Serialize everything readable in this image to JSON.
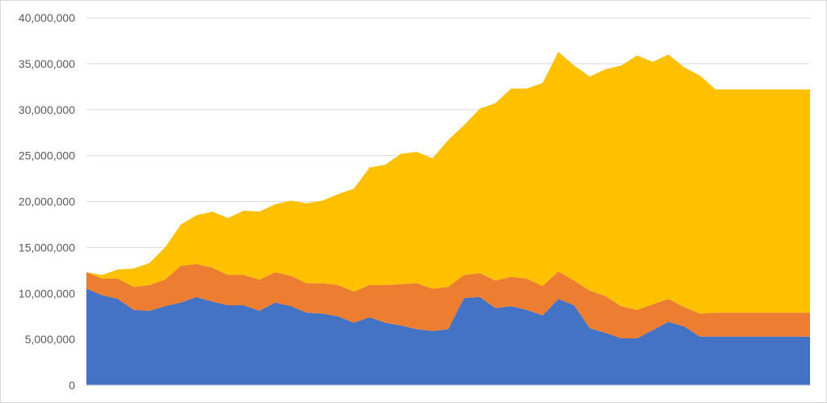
{
  "chart_data": {
    "type": "area",
    "stacked": true,
    "title": "",
    "xlabel": "",
    "ylabel": "",
    "ylim": [
      0,
      40000000
    ],
    "y_ticks": [
      0,
      5000000,
      10000000,
      15000000,
      20000000,
      25000000,
      30000000,
      35000000,
      40000000
    ],
    "y_tick_labels": [
      "0",
      "5,000,000",
      "10,000,000",
      "15,000,000",
      "20,000,000",
      "25,000,000",
      "30,000,000",
      "35,000,000",
      "40,000,000"
    ],
    "grid": "horizontal",
    "legend": "none",
    "x": [
      1,
      2,
      3,
      4,
      5,
      6,
      7,
      8,
      9,
      10,
      11,
      12,
      13,
      14,
      15,
      16,
      17,
      18,
      19,
      20,
      21,
      22,
      23,
      24,
      25,
      26,
      27,
      28,
      29,
      30,
      31,
      32,
      33,
      34,
      35,
      36,
      37,
      38,
      39,
      40,
      41,
      42,
      43,
      44,
      45,
      46,
      47
    ],
    "series": [
      {
        "color": "#4472C4",
        "values": [
          10500000,
          9800000,
          9400000,
          8200000,
          8100000,
          8600000,
          9000000,
          9600000,
          9100000,
          8700000,
          8700000,
          8100000,
          9000000,
          8600000,
          7900000,
          7800000,
          7500000,
          6800000,
          7400000,
          6800000,
          6500000,
          6100000,
          5900000,
          6100000,
          9500000,
          9600000,
          8400000,
          8600000,
          8200000,
          7600000,
          9400000,
          8700000,
          6200000,
          5700000,
          5100000,
          5100000,
          6000000,
          6900000,
          6400000,
          5300000,
          5300000,
          5300000,
          5300000,
          5300000,
          5300000,
          5300000,
          5300000
        ]
      },
      {
        "color": "#ED7D31",
        "values": [
          1800000,
          1800000,
          2200000,
          2500000,
          2800000,
          2900000,
          4000000,
          3600000,
          3700000,
          3300000,
          3300000,
          3400000,
          3300000,
          3300000,
          3200000,
          3300000,
          3400000,
          3400000,
          3500000,
          4100000,
          4500000,
          5000000,
          4600000,
          4600000,
          2500000,
          2600000,
          3000000,
          3200000,
          3400000,
          3200000,
          3000000,
          2700000,
          4100000,
          4000000,
          3500000,
          3100000,
          2800000,
          2500000,
          2100000,
          2500000,
          2600000,
          2600000,
          2600000,
          2600000,
          2600000,
          2600000,
          2600000
        ]
      },
      {
        "color": "#FFC000",
        "values": [
          0,
          400000,
          1000000,
          2000000,
          2400000,
          3500000,
          4500000,
          5300000,
          6100000,
          6200000,
          7000000,
          7400000,
          7400000,
          8200000,
          8700000,
          9000000,
          9900000,
          11200000,
          12800000,
          13100000,
          14200000,
          14300000,
          14200000,
          16000000,
          16300000,
          17900000,
          19300000,
          20500000,
          20700000,
          22100000,
          23900000,
          23400000,
          23300000,
          24700000,
          26200000,
          27700000,
          26400000,
          26600000,
          26100000,
          25900000,
          24300000,
          24300000,
          24300000,
          24300000,
          24300000,
          24300000,
          24300000
        ]
      }
    ]
  }
}
